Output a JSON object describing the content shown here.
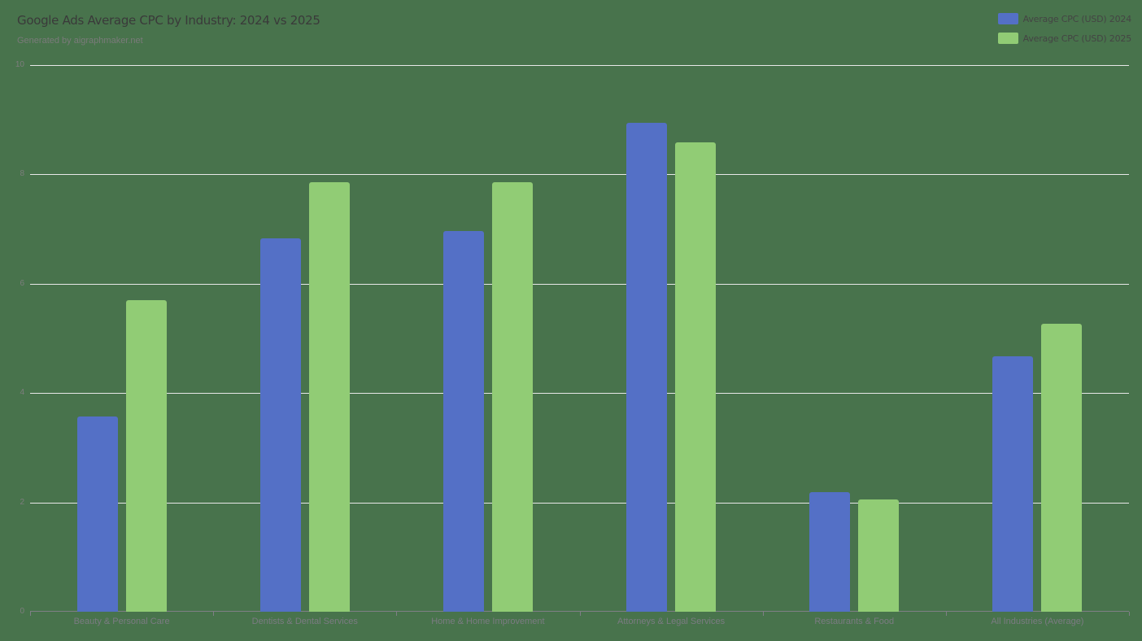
{
  "header": {
    "title": "Google Ads Average CPC by Industry: 2024 vs 2025",
    "subtitle": "Generated by aigraphmaker.net"
  },
  "legend": [
    {
      "label": "Average CPC (USD) 2024",
      "color": "#5470c6"
    },
    {
      "label": "Average CPC (USD) 2025",
      "color": "#91cc75"
    }
  ],
  "colors": {
    "background": "#48734c",
    "series_2024": "#5470c6",
    "series_2025": "#91cc75",
    "grid": "#e8e8e8"
  },
  "chart_data": {
    "type": "bar",
    "title": "Google Ads Average CPC by Industry: 2024 vs 2025",
    "subtitle": "Generated by aigraphmaker.net",
    "xlabel": "",
    "ylabel": "",
    "ylim": [
      0,
      10
    ],
    "yticks": [
      0,
      2,
      4,
      6,
      8,
      10
    ],
    "grid": true,
    "legend_position": "top-right",
    "categories": [
      "Beauty & Personal Care",
      "Dentists & Dental Services",
      "Home & Home Improvement",
      "Attorneys & Legal Services",
      "Restaurants & Food",
      "All Industries (Average)"
    ],
    "series": [
      {
        "name": "Average CPC (USD) 2024",
        "values": [
          3.57,
          6.83,
          6.96,
          8.94,
          2.19,
          4.67
        ]
      },
      {
        "name": "Average CPC (USD) 2025",
        "values": [
          5.7,
          7.86,
          7.86,
          8.59,
          2.05,
          5.27
        ]
      }
    ]
  }
}
